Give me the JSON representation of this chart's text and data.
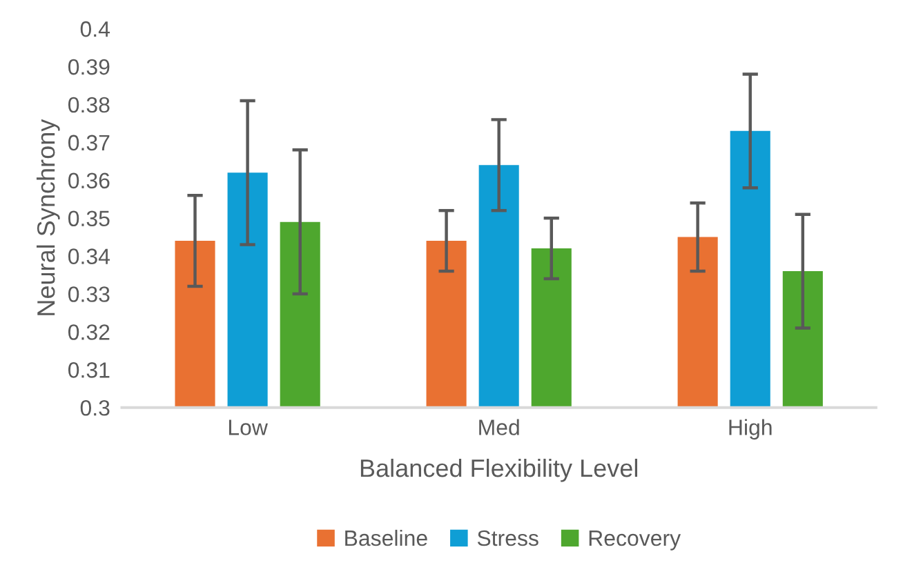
{
  "chart_data": {
    "type": "bar",
    "xlabel": "Balanced Flexibility Level",
    "ylabel": "Neural Synchrony",
    "categories": [
      "Low",
      "Med",
      "High"
    ],
    "series": [
      {
        "name": "Baseline",
        "color": "#e97132",
        "values": [
          0.344,
          0.344,
          0.345
        ],
        "errors": [
          0.012,
          0.008,
          0.009
        ]
      },
      {
        "name": "Stress",
        "color": "#0f9ed5",
        "values": [
          0.362,
          0.364,
          0.373
        ],
        "errors": [
          0.019,
          0.012,
          0.015
        ]
      },
      {
        "name": "Recovery",
        "color": "#4ea72e",
        "values": [
          0.349,
          0.342,
          0.336
        ],
        "errors": [
          0.019,
          0.008,
          0.015
        ]
      }
    ],
    "ylim": [
      0.3,
      0.4
    ],
    "yticks": [
      0.3,
      0.31,
      0.32,
      0.33,
      0.34,
      0.35,
      0.36,
      0.37,
      0.38,
      0.39,
      0.4
    ],
    "grid": false,
    "legend": "bottom"
  }
}
